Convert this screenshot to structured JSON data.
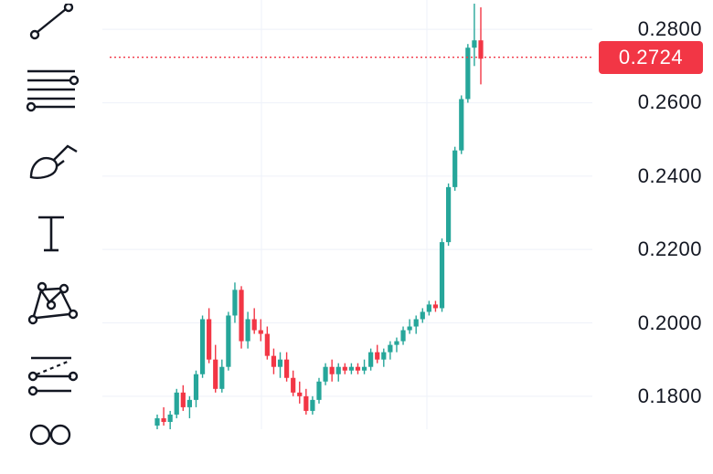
{
  "toolbar": {
    "tools": [
      {
        "name": "trend-line-tool",
        "icon": "trend-line-icon"
      },
      {
        "name": "fib-retracement-tool",
        "icon": "fib-retracement-icon"
      },
      {
        "name": "brush-tool",
        "icon": "brush-icon"
      },
      {
        "name": "text-tool",
        "icon": "text-icon"
      },
      {
        "name": "pattern-tool",
        "icon": "xabcd-pattern-icon"
      },
      {
        "name": "prediction-tool",
        "icon": "forecast-icon"
      },
      {
        "name": "measure-tool",
        "icon": "measure-icon"
      }
    ]
  },
  "price_axis": {
    "labels": [
      "0.2800",
      "0.2600",
      "0.2400",
      "0.2200",
      "0.2000",
      "0.1800"
    ],
    "last_price": "0.2724"
  },
  "colors": {
    "up": "#26a69a",
    "down": "#f23645",
    "grid": "#f0f3fa",
    "text": "#131722"
  },
  "chart_data": {
    "type": "candlestick",
    "ylim": [
      0.171,
      0.288
    ],
    "last_price": 0.2724,
    "candles": [
      [
        0.172,
        0.175,
        0.17,
        0.174
      ],
      [
        0.174,
        0.177,
        0.172,
        0.173
      ],
      [
        0.173,
        0.176,
        0.171,
        0.175
      ],
      [
        0.175,
        0.182,
        0.174,
        0.181
      ],
      [
        0.181,
        0.183,
        0.176,
        0.177
      ],
      [
        0.177,
        0.18,
        0.174,
        0.179
      ],
      [
        0.179,
        0.187,
        0.177,
        0.186
      ],
      [
        0.186,
        0.202,
        0.185,
        0.201
      ],
      [
        0.201,
        0.204,
        0.189,
        0.19
      ],
      [
        0.19,
        0.194,
        0.181,
        0.182
      ],
      [
        0.182,
        0.19,
        0.181,
        0.188
      ],
      [
        0.188,
        0.203,
        0.187,
        0.202
      ],
      [
        0.202,
        0.211,
        0.2,
        0.209
      ],
      [
        0.209,
        0.21,
        0.193,
        0.195
      ],
      [
        0.195,
        0.203,
        0.193,
        0.201
      ],
      [
        0.201,
        0.204,
        0.197,
        0.198
      ],
      [
        0.198,
        0.201,
        0.195,
        0.197
      ],
      [
        0.197,
        0.199,
        0.19,
        0.191
      ],
      [
        0.191,
        0.193,
        0.186,
        0.188
      ],
      [
        0.188,
        0.192,
        0.185,
        0.19
      ],
      [
        0.19,
        0.192,
        0.184,
        0.185
      ],
      [
        0.185,
        0.187,
        0.18,
        0.181
      ],
      [
        0.181,
        0.184,
        0.178,
        0.18
      ],
      [
        0.18,
        0.182,
        0.175,
        0.176
      ],
      [
        0.176,
        0.18,
        0.175,
        0.179
      ],
      [
        0.179,
        0.185,
        0.178,
        0.184
      ],
      [
        0.184,
        0.189,
        0.183,
        0.188
      ],
      [
        0.188,
        0.19,
        0.184,
        0.186
      ],
      [
        0.186,
        0.189,
        0.184,
        0.188
      ],
      [
        0.188,
        0.189,
        0.186,
        0.187
      ],
      [
        0.187,
        0.189,
        0.186,
        0.188
      ],
      [
        0.188,
        0.189,
        0.186,
        0.187
      ],
      [
        0.187,
        0.19,
        0.186,
        0.188
      ],
      [
        0.188,
        0.193,
        0.187,
        0.192
      ],
      [
        0.192,
        0.194,
        0.189,
        0.19
      ],
      [
        0.19,
        0.193,
        0.188,
        0.192
      ],
      [
        0.192,
        0.195,
        0.19,
        0.194
      ],
      [
        0.194,
        0.196,
        0.192,
        0.195
      ],
      [
        0.195,
        0.199,
        0.194,
        0.198
      ],
      [
        0.198,
        0.201,
        0.197,
        0.199
      ],
      [
        0.199,
        0.202,
        0.197,
        0.201
      ],
      [
        0.201,
        0.204,
        0.2,
        0.203
      ],
      [
        0.203,
        0.206,
        0.202,
        0.205
      ],
      [
        0.205,
        0.206,
        0.203,
        0.204
      ],
      [
        0.204,
        0.223,
        0.203,
        0.222
      ],
      [
        0.222,
        0.238,
        0.221,
        0.237
      ],
      [
        0.237,
        0.248,
        0.236,
        0.247
      ],
      [
        0.247,
        0.262,
        0.246,
        0.261
      ],
      [
        0.261,
        0.276,
        0.26,
        0.275
      ],
      [
        0.275,
        0.287,
        0.27,
        0.277
      ],
      [
        0.277,
        0.286,
        0.265,
        0.272
      ]
    ]
  }
}
